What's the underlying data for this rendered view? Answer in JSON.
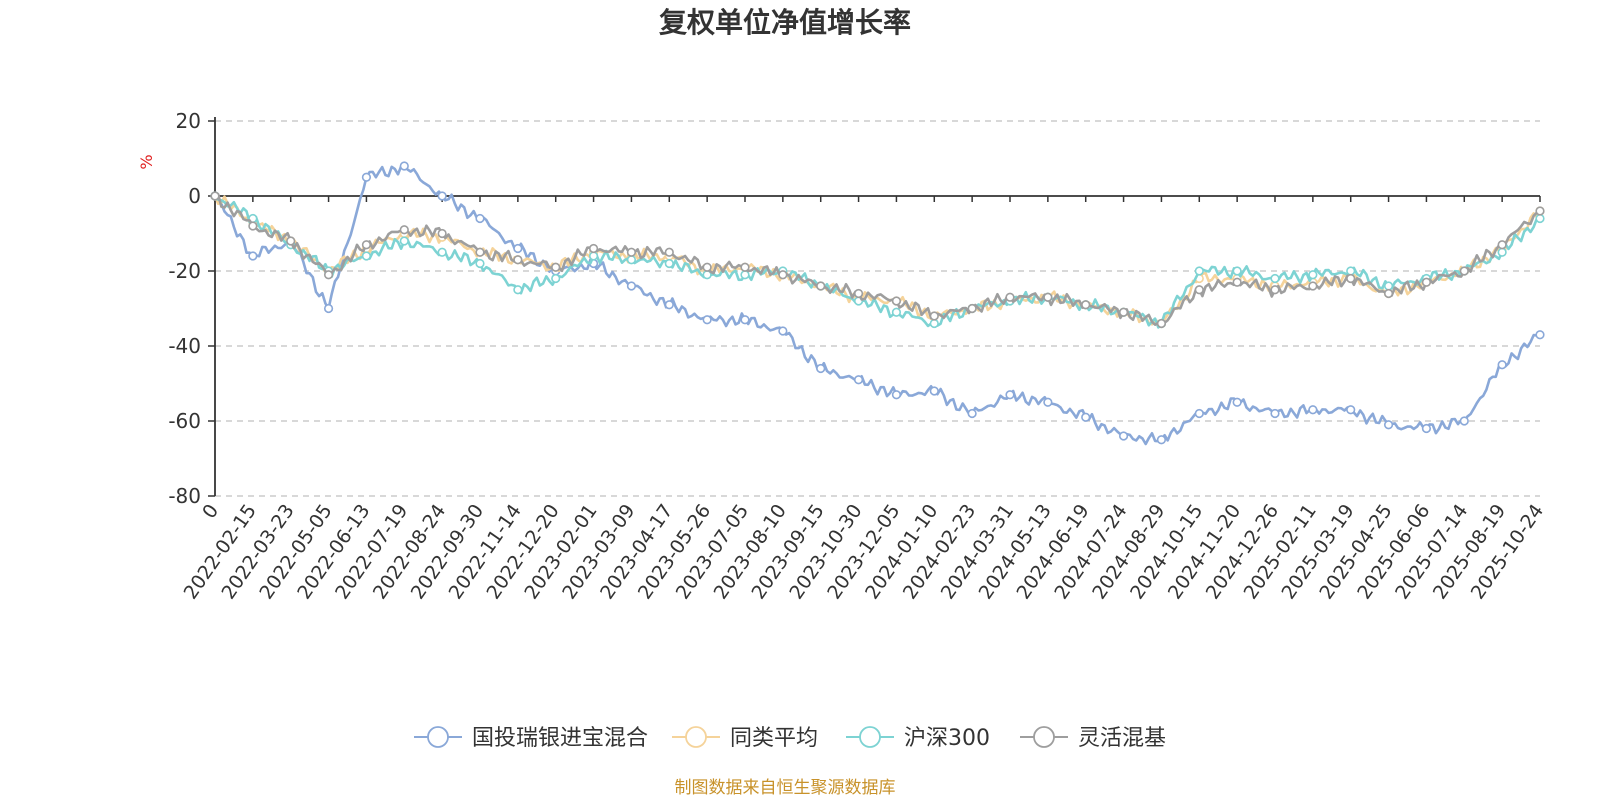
{
  "chart_data": {
    "type": "line",
    "title": "复权单位净值增长率",
    "ylabel": "%",
    "ylim": [
      -80,
      20
    ],
    "yticks": [
      20,
      0,
      -20,
      -40,
      -60,
      -80
    ],
    "grid": true,
    "legend_position": "bottom",
    "source": "制图数据来自恒生聚源数据库",
    "categories": [
      "0",
      "2022-02-15",
      "2022-03-23",
      "2022-05-05",
      "2022-06-13",
      "2022-07-19",
      "2022-08-24",
      "2022-09-30",
      "2022-11-14",
      "2022-12-20",
      "2023-02-01",
      "2023-03-09",
      "2023-04-17",
      "2023-05-26",
      "2023-07-05",
      "2023-08-10",
      "2023-09-15",
      "2023-10-30",
      "2023-12-05",
      "2024-01-10",
      "2024-02-23",
      "2024-03-31",
      "2024-05-13",
      "2024-06-19",
      "2024-07-24",
      "2024-08-29",
      "2024-10-15",
      "2024-11-20",
      "2024-12-26",
      "2025-02-11",
      "2025-03-19",
      "2025-04-25",
      "2025-06-06",
      "2025-07-14",
      "2025-08-19",
      "2025-10-24"
    ],
    "series": [
      {
        "name": "国投瑞银进宝混合",
        "color": "#8aa8d8",
        "values": [
          0,
          -16,
          -12,
          -30,
          5,
          8,
          0,
          -6,
          -14,
          -20,
          -18,
          -24,
          -29,
          -33,
          -33,
          -36,
          -46,
          -49,
          -53,
          -52,
          -58,
          -53,
          -55,
          -59,
          -64,
          -65,
          -58,
          -55,
          -58,
          -57,
          -57,
          -61,
          -62,
          -60,
          -45,
          -37
        ]
      },
      {
        "name": "同类平均",
        "color": "#f5d39a",
        "values": [
          0,
          -7,
          -12,
          -20,
          -14,
          -10,
          -11,
          -15,
          -17,
          -19,
          -15,
          -16,
          -16,
          -20,
          -19,
          -21,
          -24,
          -27,
          -28,
          -32,
          -30,
          -28,
          -27,
          -29,
          -31,
          -34,
          -22,
          -22,
          -24,
          -23,
          -22,
          -26,
          -23,
          -20,
          -14,
          -4
        ]
      },
      {
        "name": "沪深300",
        "color": "#7dd3d3",
        "values": [
          0,
          -6,
          -13,
          -20,
          -16,
          -12,
          -15,
          -18,
          -25,
          -22,
          -16,
          -17,
          -18,
          -21,
          -21,
          -20,
          -24,
          -28,
          -31,
          -34,
          -30,
          -28,
          -27,
          -29,
          -31,
          -34,
          -20,
          -20,
          -22,
          -21,
          -20,
          -24,
          -22,
          -20,
          -15,
          -6
        ]
      },
      {
        "name": "灵活混基",
        "color": "#9e9e9e",
        "values": [
          0,
          -8,
          -12,
          -21,
          -13,
          -9,
          -10,
          -15,
          -17,
          -19,
          -14,
          -15,
          -15,
          -19,
          -19,
          -21,
          -24,
          -26,
          -28,
          -32,
          -30,
          -27,
          -27,
          -29,
          -31,
          -34,
          -25,
          -23,
          -25,
          -24,
          -22,
          -26,
          -23,
          -20,
          -13,
          -4
        ]
      }
    ]
  }
}
